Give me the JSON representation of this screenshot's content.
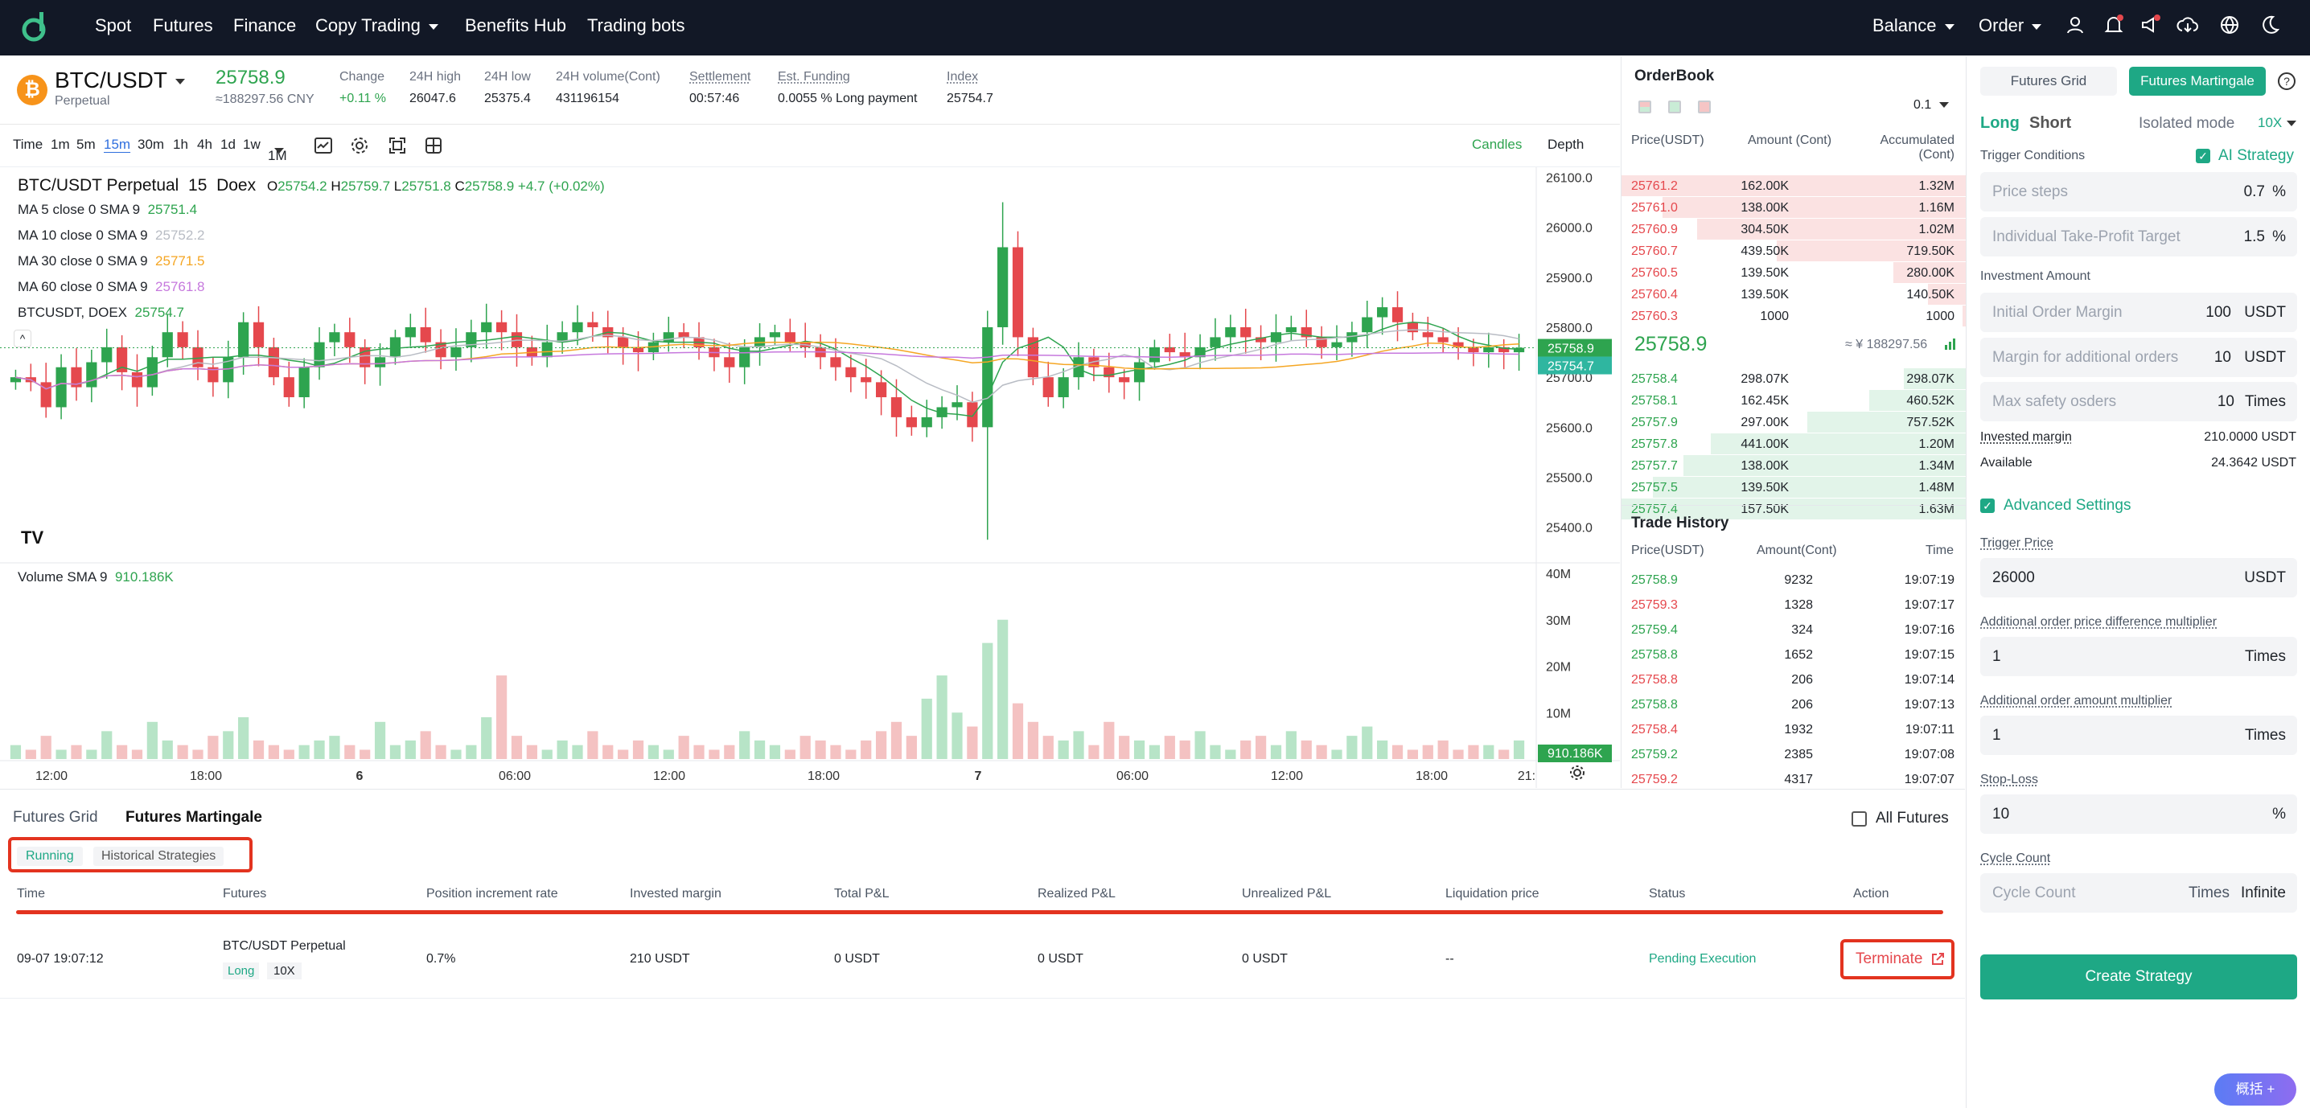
{
  "nav": {
    "items": [
      "Spot",
      "Futures",
      "Finance",
      "Copy Trading",
      "Benefits Hub",
      "Trading bots"
    ],
    "right": [
      "Balance",
      "Order"
    ]
  },
  "ticker": {
    "symbol": "BTC/USDT",
    "type": "Perpetual",
    "price": "25758.9",
    "cny": "≈188297.56 CNY",
    "change_label": "Change",
    "change": "+0.11 %",
    "high_label": "24H high",
    "high": "26047.6",
    "low_label": "24H low",
    "low": "25375.4",
    "vol_label": "24H volume(Cont)",
    "vol": "431196154",
    "settle_label": "Settlement",
    "settle": "00:57:46",
    "fund_label": "Est. Funding",
    "fund": "0.0055 % Long payment",
    "index_label": "Index",
    "index": "25754.7"
  },
  "toolbar": {
    "intervals": [
      "Time",
      "1m",
      "5m",
      "15m",
      "30m",
      "1h",
      "4h",
      "1d",
      "1w",
      "1M"
    ],
    "active": "15m",
    "views": [
      "Candles",
      "Depth"
    ]
  },
  "chart_data": {
    "type": "candlestick",
    "title": "BTC/USDT Perpetual",
    "interval": "15",
    "exchange": "Doex",
    "ohlc": {
      "o": "25754.2",
      "h": "25759.7",
      "l": "25751.8",
      "c": "25758.9",
      "chg": "+4.7 (+0.02%)"
    },
    "indicators": [
      {
        "name": "MA 5 close 0 SMA 9",
        "value": "25751.4",
        "color": "#2ea44f"
      },
      {
        "name": "MA 10 close 0 SMA 9",
        "value": "25752.2",
        "color": "#b8bcc4"
      },
      {
        "name": "MA 30 close 0 SMA 9",
        "value": "25771.5",
        "color": "#f5a623"
      },
      {
        "name": "MA 60 close 0 SMA 9",
        "value": "25761.8",
        "color": "#c678dd"
      },
      {
        "name": "BTCUSDT, DOEX",
        "value": "25754.7",
        "color": "#2ea44f"
      }
    ],
    "y_ticks": [
      "26100.0",
      "26000.0",
      "25900.0",
      "25800.0",
      "25700.0",
      "25600.0",
      "25500.0",
      "25400.0"
    ],
    "ylim": [
      25375,
      26100
    ],
    "last_price_tag": "25758.9",
    "index_tag": "25754.7",
    "volume_label": "Volume SMA 9",
    "volume_value": "910.186K",
    "volume_ticks": [
      "40M",
      "30M",
      "20M",
      "10M"
    ],
    "volume_tag": "910.186K",
    "x_ticks": [
      "12:00",
      "18:00",
      "6",
      "06:00",
      "12:00",
      "18:00",
      "7",
      "06:00",
      "12:00",
      "18:00",
      "21:"
    ],
    "closes": [
      25700,
      25690,
      25640,
      25720,
      25680,
      25730,
      25760,
      25710,
      25680,
      25740,
      25790,
      25760,
      25720,
      25690,
      25740,
      25810,
      25760,
      25700,
      25660,
      25720,
      25770,
      25790,
      25760,
      25720,
      25740,
      25780,
      25800,
      25770,
      25740,
      25760,
      25790,
      25810,
      25790,
      25760,
      25740,
      25770,
      25790,
      25810,
      25800,
      25780,
      25760,
      25750,
      25770,
      25790,
      25780,
      25760,
      25740,
      25720,
      25760,
      25780,
      25790,
      25770,
      25760,
      25740,
      25720,
      25700,
      25690,
      25660,
      25620,
      25600,
      25620,
      25640,
      25650,
      25600,
      25800,
      25960,
      25780,
      25700,
      25660,
      25700,
      25740,
      25720,
      25700,
      25690,
      25730,
      25760,
      25750,
      25740,
      25760,
      25780,
      25800,
      25780,
      25770,
      25790,
      25800,
      25780,
      25760,
      25770,
      25790,
      25820,
      25840,
      25810,
      25790,
      25780,
      25770,
      25760,
      25750,
      25760,
      25750,
      25758.9
    ],
    "volumes": [
      3,
      2,
      5,
      2,
      3,
      2,
      6,
      3,
      2,
      8,
      4,
      3,
      2,
      5,
      6,
      9,
      4,
      3,
      2,
      3,
      4,
      5,
      3,
      2,
      8,
      3,
      4,
      6,
      3,
      2,
      3,
      9,
      18,
      5,
      3,
      2,
      4,
      3,
      6,
      3,
      2,
      4,
      3,
      2,
      5,
      3,
      2,
      3,
      6,
      4,
      3,
      2,
      5,
      4,
      3,
      2,
      4,
      6,
      8,
      5,
      13,
      18,
      10,
      7,
      25,
      30,
      12,
      8,
      5,
      4,
      6,
      3,
      8,
      5,
      4,
      3,
      5,
      4,
      6,
      3,
      2,
      4,
      5,
      3,
      6,
      4,
      3,
      2,
      5,
      7,
      4,
      3,
      2,
      3,
      4,
      2,
      3,
      3,
      2,
      4
    ]
  },
  "orderbook": {
    "title": "OrderBook",
    "precision": "0.1",
    "headers": [
      "Price(USDT)",
      "Amount (Cont)",
      "Accumulated (Cont)"
    ],
    "asks": [
      [
        "25761.2",
        "162.00K",
        "1.32M"
      ],
      [
        "25761.0",
        "138.00K",
        "1.16M"
      ],
      [
        "25760.9",
        "304.50K",
        "1.02M"
      ],
      [
        "25760.7",
        "439.50K",
        "719.50K"
      ],
      [
        "25760.5",
        "139.50K",
        "280.00K"
      ],
      [
        "25760.4",
        "139.50K",
        "140.50K"
      ],
      [
        "25760.3",
        "1000",
        "1000"
      ]
    ],
    "ask_depth": [
      1.0,
      0.88,
      0.78,
      0.55,
      0.21,
      0.11,
      0.01
    ],
    "mid": "25758.9",
    "mid_cny": "≈ ¥ 188297.56",
    "bids": [
      [
        "25758.4",
        "298.07K",
        "298.07K"
      ],
      [
        "25758.1",
        "162.45K",
        "460.52K"
      ],
      [
        "25757.9",
        "297.00K",
        "757.52K"
      ],
      [
        "25757.8",
        "441.00K",
        "1.20M"
      ],
      [
        "25757.7",
        "138.00K",
        "1.34M"
      ],
      [
        "25757.5",
        "139.50K",
        "1.48M"
      ],
      [
        "25757.4",
        "157.50K",
        "1.63M"
      ]
    ],
    "bid_depth": [
      0.18,
      0.28,
      0.46,
      0.74,
      0.82,
      0.91,
      1.0
    ]
  },
  "trades": {
    "title": "Trade History",
    "headers": [
      "Price(USDT)",
      "Amount(Cont)",
      "Time"
    ],
    "rows": [
      [
        "25758.9",
        "9232",
        "19:07:19",
        "g"
      ],
      [
        "25759.3",
        "1328",
        "19:07:17",
        "r"
      ],
      [
        "25759.4",
        "324",
        "19:07:16",
        "g"
      ],
      [
        "25758.8",
        "1652",
        "19:07:15",
        "g"
      ],
      [
        "25758.8",
        "206",
        "19:07:14",
        "r"
      ],
      [
        "25758.8",
        "206",
        "19:07:13",
        "g"
      ],
      [
        "25758.4",
        "1932",
        "19:07:11",
        "r"
      ],
      [
        "25759.2",
        "2385",
        "19:07:08",
        "g"
      ],
      [
        "25759.2",
        "4317",
        "19:07:07",
        "r"
      ]
    ]
  },
  "panel": {
    "tabs": [
      "Futures Grid",
      "Futures Martingale"
    ],
    "long": "Long",
    "short": "Short",
    "mode": "Isolated mode",
    "lev": "10X",
    "trigger_cond": "Trigger Conditions",
    "ai": "AI Strategy",
    "price_steps": {
      "ph": "Price steps",
      "v": "0.7",
      "u": "%"
    },
    "tp": {
      "ph": "Individual Take-Profit Target",
      "v": "1.5",
      "u": "%"
    },
    "inv_label": "Investment Amount",
    "initial": {
      "ph": "Initial Order Margin",
      "v": "100",
      "u": "USDT"
    },
    "additional": {
      "ph": "Margin for additional orders",
      "v": "10",
      "u": "USDT"
    },
    "safety": {
      "ph": "Max safety osders",
      "v": "10",
      "u": "Times"
    },
    "invested_label": "Invested margin",
    "invested": "210.0000 USDT",
    "avail_label": "Available",
    "avail": "24.3642 USDT",
    "adv": "Advanced Settings",
    "trigger_label": "Trigger Price",
    "trigger": {
      "v": "26000",
      "u": "USDT"
    },
    "diff_label": "Additional order price difference multiplier",
    "diff": {
      "v": "1",
      "u": "Times"
    },
    "amt_label": "Additional order amount multiplier",
    "amt": {
      "v": "1",
      "u": "Times"
    },
    "sl_label": "Stop-Loss",
    "sl": {
      "v": "10",
      "u": "%"
    },
    "cycle_label": "Cycle Count",
    "cycle": {
      "ph": "Cycle Count",
      "u": "Times",
      "v": "Infinite"
    },
    "create": "Create Strategy",
    "help": "概括 +"
  },
  "bottom": {
    "tabs": [
      "Futures Grid",
      "Futures Martingale"
    ],
    "sub": [
      "Running",
      "Historical Strategies"
    ],
    "all": "All Futures",
    "headers": [
      "Time",
      "Futures",
      "Position increment rate",
      "Invested margin",
      "Total P&L",
      "Realized P&L",
      "Unrealized P&L",
      "Liquidation price",
      "Status",
      "Action"
    ],
    "row": {
      "time": "09-07 19:07:12",
      "futures": "BTC/USDT Perpetual",
      "side": "Long",
      "lev": "10X",
      "rate": "0.7%",
      "margin": "210 USDT",
      "total": "0 USDT",
      "realized": "0 USDT",
      "unrealized": "0 USDT",
      "liq": "--",
      "status": "Pending Execution",
      "action": "Terminate"
    }
  }
}
